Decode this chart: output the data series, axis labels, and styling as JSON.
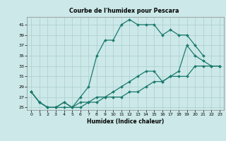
{
  "title": "Courbe de l'humidex pour Pescara",
  "xlabel": "Humidex (Indice chaleur)",
  "xlim": [
    -0.5,
    23.5
  ],
  "ylim": [
    24.5,
    42.5
  ],
  "yticks": [
    25,
    27,
    29,
    31,
    33,
    35,
    37,
    39,
    41
  ],
  "xticks": [
    0,
    1,
    2,
    3,
    4,
    5,
    6,
    7,
    8,
    9,
    10,
    11,
    12,
    13,
    14,
    15,
    16,
    17,
    18,
    19,
    20,
    21,
    22,
    23
  ],
  "bg_color": "#cce8e8",
  "line_color": "#1a7a6e",
  "grid_color": "#aacece",
  "line1_y": [
    28,
    26,
    25,
    25,
    26,
    25,
    27,
    29,
    35,
    38,
    38,
    41,
    42,
    41,
    41,
    41,
    39,
    40,
    39,
    39,
    37,
    35,
    null,
    null
  ],
  "line2_y": [
    28,
    26,
    25,
    25,
    26,
    25,
    26,
    26,
    27,
    27,
    28,
    29,
    30,
    31,
    32,
    32,
    30,
    31,
    32,
    37,
    35,
    34,
    33,
    33
  ],
  "line3_y": [
    28,
    26,
    25,
    25,
    25,
    25,
    25,
    26,
    26,
    27,
    27,
    27,
    28,
    28,
    29,
    30,
    30,
    31,
    31,
    31,
    33,
    33,
    33,
    33
  ]
}
